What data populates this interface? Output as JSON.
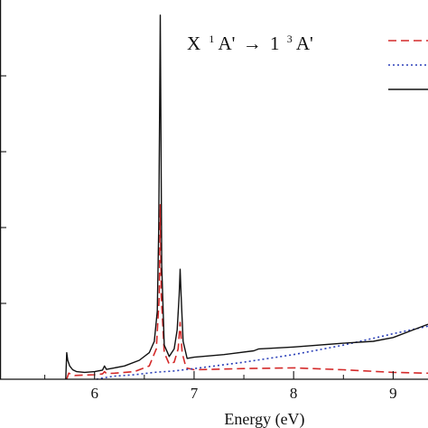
{
  "chart_data": {
    "type": "line",
    "title": "",
    "annotation": {
      "left": "X",
      "left_sup": "1",
      "left_sym": "A'",
      "arrow": "→",
      "right": "1",
      "right_sup": "3",
      "right_sym": "A'"
    },
    "xlabel": "Energy (eV)",
    "ylabel": "",
    "xlim": [
      5.05,
      9.35
    ],
    "ylim": [
      0,
      1.0
    ],
    "xticks": [
      "6",
      "7",
      "8",
      "9"
    ],
    "xtick_values": [
      6,
      7,
      8,
      9
    ],
    "minor_xtick_values": [
      5.5,
      6.5,
      7.5,
      8.5
    ],
    "y_tick_values": [
      0.2,
      0.4,
      0.6,
      0.8
    ],
    "grid": false,
    "legend": "top-right",
    "series": [
      {
        "style": "dashed",
        "color": "#d42a2a",
        "x": [
          5.72,
          5.74,
          5.8,
          5.9,
          6.0,
          6.08,
          6.1,
          6.12,
          6.2,
          6.4,
          6.55,
          6.62,
          6.65,
          6.66,
          6.67,
          6.7,
          6.75,
          6.8,
          6.84,
          6.86,
          6.88,
          6.92,
          7.0,
          7.5,
          8.0,
          8.5,
          9.0,
          9.35
        ],
        "y": [
          0.0,
          0.016,
          0.01,
          0.011,
          0.012,
          0.014,
          0.02,
          0.015,
          0.016,
          0.02,
          0.035,
          0.08,
          0.22,
          0.46,
          0.22,
          0.07,
          0.04,
          0.045,
          0.08,
          0.15,
          0.07,
          0.03,
          0.025,
          0.028,
          0.03,
          0.025,
          0.018,
          0.016
        ]
      },
      {
        "style": "dotted",
        "color": "#2a3fb8",
        "x": [
          6.02,
          6.1,
          6.2,
          6.4,
          6.6,
          6.8,
          7.0,
          7.5,
          8.0,
          8.5,
          9.0,
          9.35
        ],
        "y": [
          0.0,
          0.004,
          0.008,
          0.012,
          0.018,
          0.022,
          0.028,
          0.045,
          0.065,
          0.09,
          0.12,
          0.14
        ]
      },
      {
        "style": "solid",
        "color": "#111111",
        "x": [
          5.71,
          5.72,
          5.73,
          5.75,
          5.78,
          5.82,
          5.9,
          6.0,
          6.08,
          6.1,
          6.12,
          6.2,
          6.3,
          6.45,
          6.55,
          6.6,
          6.63,
          6.645,
          6.655,
          6.66,
          6.665,
          6.675,
          6.7,
          6.75,
          6.8,
          6.83,
          6.85,
          6.86,
          6.87,
          6.89,
          6.93,
          7.0,
          7.3,
          7.6,
          7.65,
          8.0,
          8.5,
          8.8,
          9.0,
          9.2,
          9.35
        ],
        "y": [
          0.0,
          0.07,
          0.05,
          0.035,
          0.025,
          0.02,
          0.018,
          0.02,
          0.024,
          0.035,
          0.026,
          0.03,
          0.035,
          0.05,
          0.07,
          0.1,
          0.18,
          0.4,
          0.75,
          0.96,
          0.75,
          0.3,
          0.09,
          0.06,
          0.08,
          0.13,
          0.22,
          0.29,
          0.22,
          0.1,
          0.055,
          0.058,
          0.065,
          0.075,
          0.08,
          0.085,
          0.095,
          0.1,
          0.11,
          0.13,
          0.145
        ]
      }
    ]
  }
}
